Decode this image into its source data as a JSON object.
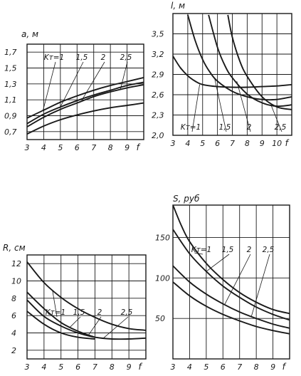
{
  "chart_data": [
    {
      "type": "line",
      "ylabel": "a, м",
      "xlabel": "f",
      "xlim": [
        3,
        10
      ],
      "ylim": [
        0.6,
        1.8
      ],
      "x_ticks": [
        "3",
        "4",
        "5",
        "6",
        "7",
        "8",
        "9"
      ],
      "y_ticks": [
        "0,7",
        "0,9",
        "1,1",
        "1,3",
        "1,5",
        "1,7"
      ],
      "series": [
        {
          "name": "Kт=1",
          "x": [
            3,
            4,
            5,
            6,
            7,
            8,
            9,
            10
          ],
          "values": [
            0.87,
            0.97,
            1.07,
            1.15,
            1.22,
            1.28,
            1.33,
            1.38
          ]
        },
        {
          "name": "1,5",
          "x": [
            3,
            4,
            5,
            6,
            7,
            8,
            9,
            10
          ],
          "values": [
            0.8,
            0.92,
            1.01,
            1.09,
            1.16,
            1.22,
            1.28,
            1.32
          ]
        },
        {
          "name": "2",
          "x": [
            3,
            4,
            5,
            6,
            7,
            8,
            9,
            10
          ],
          "values": [
            0.76,
            0.88,
            0.98,
            1.06,
            1.14,
            1.2,
            1.25,
            1.29
          ]
        },
        {
          "name": "2,5",
          "x": [
            3,
            4,
            5,
            6,
            7,
            8,
            9,
            10
          ],
          "values": [
            0.67,
            0.77,
            0.85,
            0.91,
            0.96,
            1.0,
            1.03,
            1.06
          ]
        }
      ]
    },
    {
      "type": "line",
      "ylabel": "l, м",
      "xlabel": "f",
      "xlim": [
        3,
        11
      ],
      "ylim": [
        2.0,
        3.8
      ],
      "x_ticks": [
        "3",
        "4",
        "5",
        "6",
        "7",
        "8",
        "9",
        "10"
      ],
      "y_ticks": [
        "2,0",
        "2,3",
        "2,6",
        "2,9",
        "3,2",
        "3,5"
      ],
      "series": [
        {
          "name": "Kт=1",
          "x": [
            3,
            3.5,
            4,
            4.5,
            5,
            6,
            7,
            8,
            9,
            10,
            11
          ],
          "values": [
            3.17,
            3.0,
            2.88,
            2.8,
            2.75,
            2.72,
            2.71,
            2.71,
            2.72,
            2.73,
            2.75
          ]
        },
        {
          "name": "1,5",
          "x": [
            4,
            4.5,
            5,
            5.5,
            6,
            7,
            8,
            9,
            10,
            11
          ],
          "values": [
            3.78,
            3.4,
            3.12,
            2.93,
            2.8,
            2.65,
            2.57,
            2.53,
            2.53,
            2.57
          ]
        },
        {
          "name": "2",
          "x": [
            5.4,
            6,
            6.5,
            7,
            8,
            9,
            10,
            11
          ],
          "values": [
            3.78,
            3.3,
            3.03,
            2.85,
            2.61,
            2.48,
            2.43,
            2.45
          ]
        },
        {
          "name": "2,5",
          "x": [
            6.7,
            7,
            7.5,
            8,
            9,
            10,
            11
          ],
          "values": [
            3.78,
            3.45,
            3.1,
            2.87,
            2.57,
            2.42,
            2.38
          ]
        }
      ]
    },
    {
      "type": "line",
      "ylabel": "R, см",
      "xlabel": "f",
      "xlim": [
        3,
        10
      ],
      "ylim": [
        1,
        13
      ],
      "x_ticks": [
        "3",
        "4",
        "5",
        "6",
        "7",
        "8",
        "9"
      ],
      "y_ticks": [
        "2",
        "4",
        "6",
        "8",
        "10",
        "12"
      ],
      "series": [
        {
          "name": "Kт=1",
          "x": [
            3,
            4,
            5,
            6,
            7,
            8,
            9,
            10
          ],
          "values": [
            12.2,
            9.8,
            8.1,
            6.8,
            5.8,
            5.0,
            4.5,
            4.3
          ]
        },
        {
          "name": "1,5",
          "x": [
            3,
            4,
            5,
            6,
            7
          ],
          "values": [
            8.7,
            6.8,
            5.2,
            4.2,
            3.5
          ]
        },
        {
          "name": "2",
          "x": [
            3,
            4,
            5,
            6,
            7,
            8,
            9,
            10
          ],
          "values": [
            7.8,
            5.9,
            4.8,
            4.0,
            3.5,
            3.3,
            3.3,
            3.4
          ]
        },
        {
          "name": "2,5",
          "x": [
            3,
            4,
            5,
            6,
            7
          ],
          "values": [
            6.5,
            5.0,
            4.0,
            3.5,
            3.3
          ]
        }
      ]
    },
    {
      "type": "line",
      "ylabel": "S, руб",
      "xlabel": "f",
      "xlim": [
        3,
        10
      ],
      "ylim": [
        0,
        190
      ],
      "x_ticks": [
        "3",
        "4",
        "5",
        "6",
        "7",
        "8",
        "9"
      ],
      "y_ticks": [
        "50",
        "100",
        "150"
      ],
      "series": [
        {
          "name": "Kт=1",
          "x": [
            3,
            3.5,
            4,
            5,
            6,
            7,
            8,
            9,
            10
          ],
          "values": [
            190,
            165,
            145,
            118,
            98,
            82,
            70,
            61,
            56
          ]
        },
        {
          "name": "1,5",
          "x": [
            3,
            4,
            5,
            6,
            7,
            8,
            9,
            10
          ],
          "values": [
            160,
            130,
            108,
            90,
            76,
            64,
            55,
            48
          ]
        },
        {
          "name": "2",
          "x": [
            3,
            4,
            5,
            6,
            7,
            8,
            9,
            10
          ],
          "values": [
            115,
            95,
            80,
            68,
            58,
            50,
            43,
            38
          ]
        },
        {
          "name": "2,5",
          "x": [
            3,
            4,
            5,
            6,
            7,
            8,
            9,
            10
          ],
          "values": [
            95,
            78,
            65,
            55,
            47,
            40,
            35,
            31
          ]
        }
      ]
    }
  ]
}
